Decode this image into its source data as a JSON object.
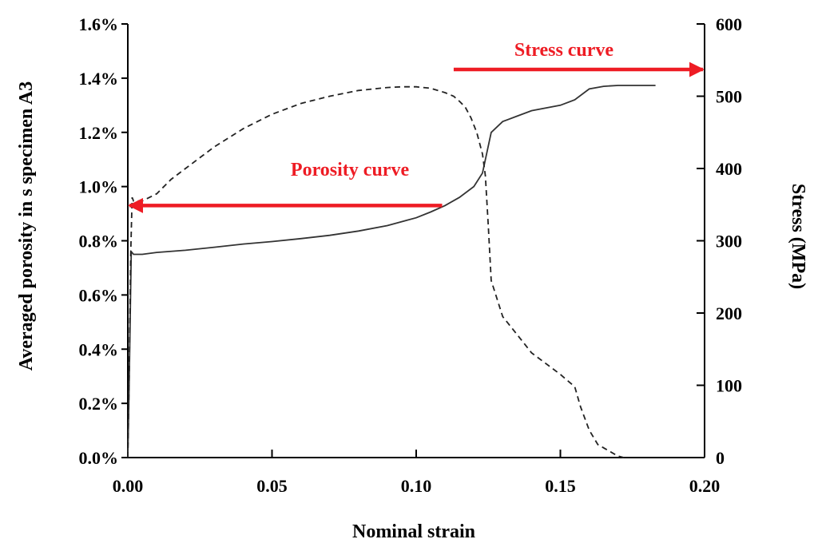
{
  "chart_data": {
    "type": "line",
    "title": "",
    "xlabel": "Nominal strain",
    "ylabel_left": "Averaged porosity in s specimen A3",
    "ylabel_right": "Stress (MPa)",
    "xlim": [
      0,
      0.2
    ],
    "ylim_left": [
      0,
      1.6
    ],
    "ylim_right": [
      0,
      600
    ],
    "x_ticks": [
      "0.00",
      "0.05",
      "0.10",
      "0.15",
      "0.20"
    ],
    "x_tick_values": [
      0,
      0.05,
      0.1,
      0.15,
      0.2
    ],
    "y_left_ticks": [
      "0.0%",
      "0.2%",
      "0.4%",
      "0.6%",
      "0.8%",
      "1.0%",
      "1.2%",
      "1.4%",
      "1.6%"
    ],
    "y_left_tick_values": [
      0,
      0.2,
      0.4,
      0.6,
      0.8,
      1.0,
      1.2,
      1.4,
      1.6
    ],
    "y_right_ticks": [
      "0",
      "100",
      "200",
      "300",
      "400",
      "500",
      "600"
    ],
    "y_right_tick_values": [
      0,
      100,
      200,
      300,
      400,
      500,
      600
    ],
    "grid": false,
    "series": [
      {
        "name": "Porosity curve",
        "axis": "left",
        "style": "solid",
        "color": "#333333",
        "x": [
          0.0,
          0.0004,
          0.0012,
          0.002,
          0.005,
          0.01,
          0.02,
          0.03,
          0.04,
          0.05,
          0.06,
          0.07,
          0.08,
          0.09,
          0.1,
          0.105,
          0.11,
          0.115,
          0.12,
          0.123,
          0.126,
          0.13,
          0.135,
          0.14,
          0.15,
          0.155,
          0.16,
          0.165,
          0.17,
          0.175,
          0.18,
          0.183
        ],
        "y": [
          0.0,
          0.22,
          0.76,
          0.75,
          0.75,
          0.757,
          0.765,
          0.776,
          0.788,
          0.797,
          0.808,
          0.82,
          0.836,
          0.856,
          0.885,
          0.906,
          0.93,
          0.96,
          1.0,
          1.05,
          1.2,
          1.24,
          1.26,
          1.28,
          1.3,
          1.32,
          1.36,
          1.37,
          1.373,
          1.373,
          1.373,
          1.373
        ]
      },
      {
        "name": "Stress curve",
        "axis": "right",
        "style": "dashed",
        "color": "#222222",
        "x": [
          0.0,
          0.0005,
          0.001,
          0.0015,
          0.002,
          0.003,
          0.005,
          0.01,
          0.015,
          0.02,
          0.025,
          0.03,
          0.04,
          0.05,
          0.06,
          0.07,
          0.08,
          0.09,
          0.095,
          0.1,
          0.105,
          0.11,
          0.113,
          0.115,
          0.117,
          0.119,
          0.121,
          0.123,
          0.124,
          0.125,
          0.126,
          0.13,
          0.135,
          0.14,
          0.15,
          0.155,
          0.157,
          0.16,
          0.163,
          0.17,
          0.172
        ],
        "y": [
          0,
          120,
          280,
          360,
          355,
          355,
          355,
          365,
          385,
          400,
          415,
          430,
          455,
          475,
          490,
          500,
          508,
          512,
          513,
          513,
          511,
          505,
          500,
          493,
          485,
          470,
          450,
          420,
          390,
          320,
          245,
          195,
          170,
          145,
          115,
          98,
          70,
          38,
          18,
          2,
          0
        ]
      }
    ],
    "annotations": [
      {
        "text": "Porosity curve",
        "color": "#ee1c24",
        "arrow_direction": "left",
        "arrow_from_x": 0.109,
        "arrow_to_x": 0.0,
        "arrow_y_left": 0.93
      },
      {
        "text": "Stress curve",
        "color": "#ee1c24",
        "arrow_direction": "right",
        "arrow_from_x": 0.113,
        "arrow_to_x": 0.2,
        "arrow_y_right": 537
      }
    ]
  }
}
